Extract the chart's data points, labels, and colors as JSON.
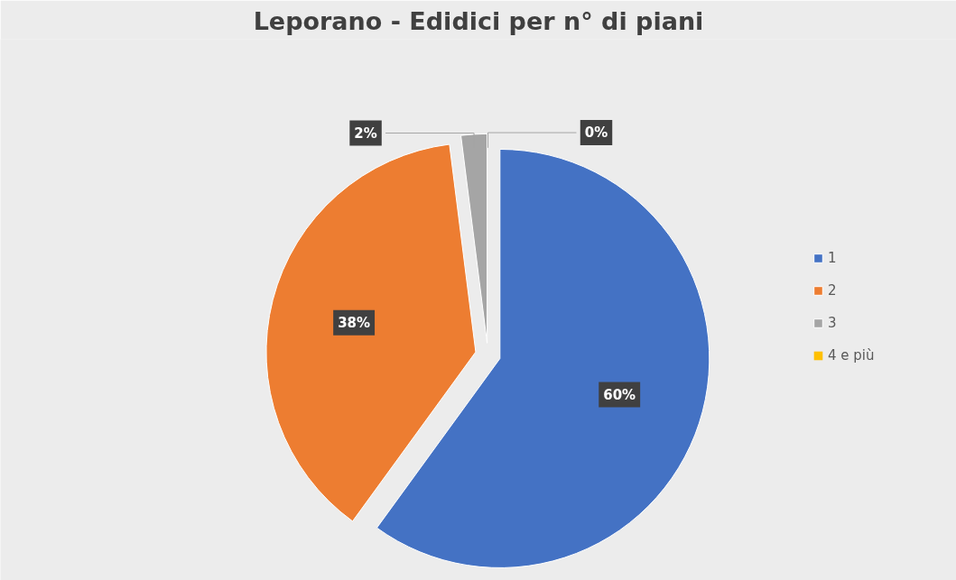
{
  "chart_data": {
    "type": "pie",
    "title": "Leporano - Edidici per n° di piani",
    "categories": [
      "1",
      "2",
      "3",
      "4 e più"
    ],
    "values": [
      60,
      38,
      2,
      0
    ],
    "colors": [
      "#4472c4",
      "#ed7d31",
      "#a5a5a5",
      "#ffc000"
    ],
    "value_labels": [
      "60%",
      "38%",
      "2%",
      "0%"
    ],
    "legend": "right"
  }
}
